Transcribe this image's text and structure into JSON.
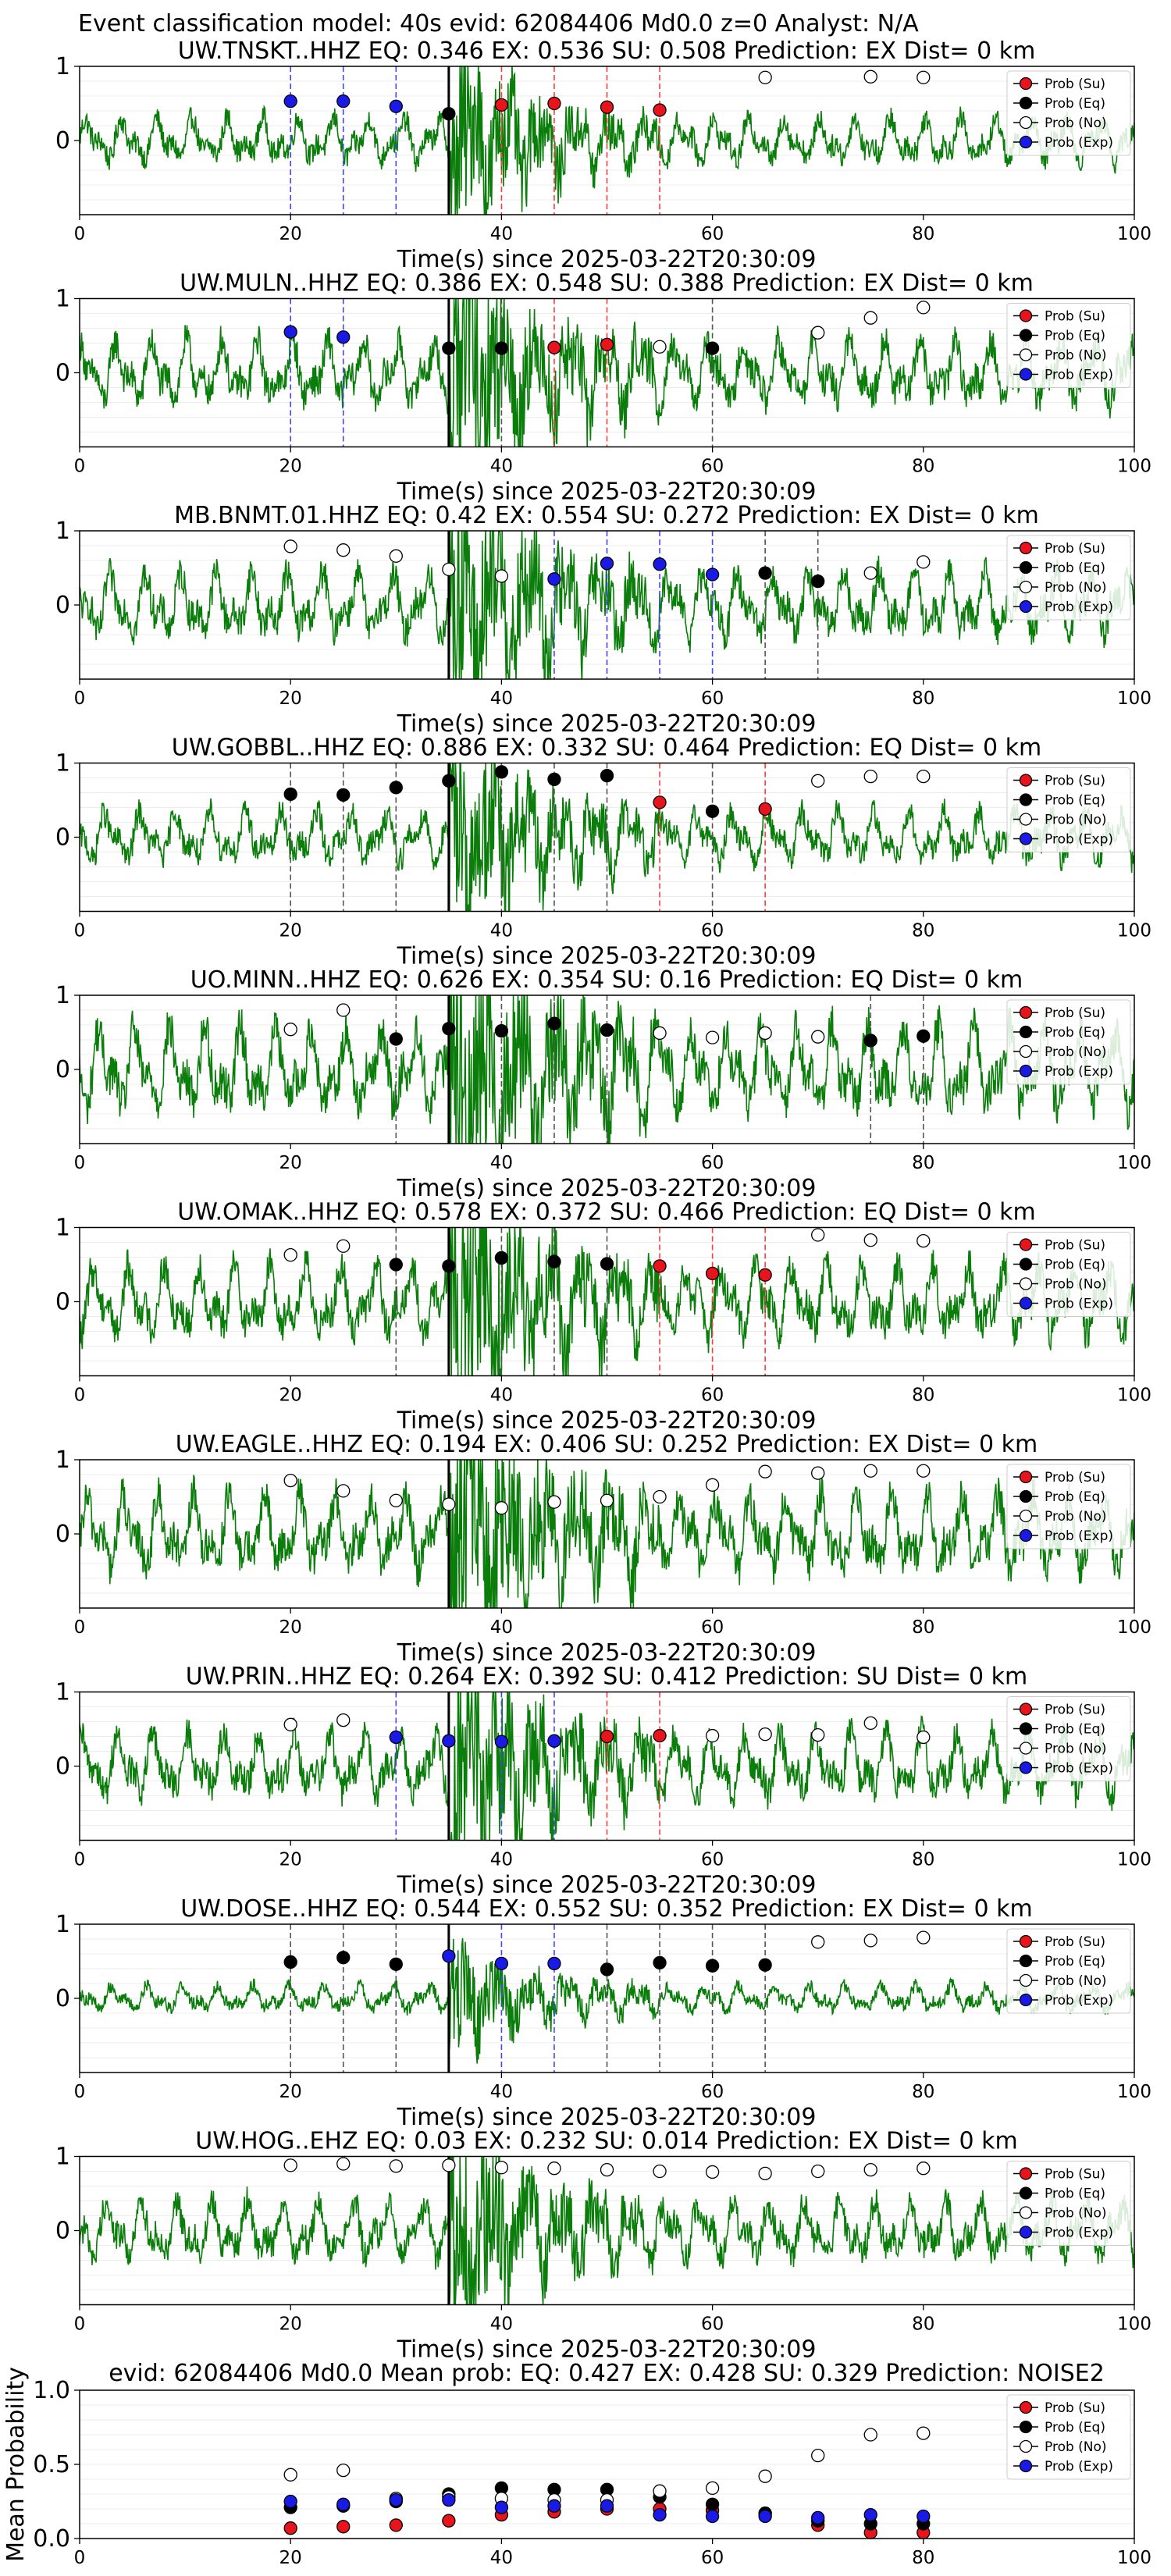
{
  "suptitle": "Event classification model: 40s evid: 62084406 Md0.0 z=0 Analyst: N/A",
  "legend_labels": [
    "Prob (Su)",
    "Prob (Eq)",
    "Prob (No)",
    "Prob (Exp)"
  ],
  "colors": {
    "su": "#e8141b",
    "eq": "#000000",
    "no": "#ffffff",
    "exp": "#1a1ae6",
    "trace": "#0a7d0a",
    "su_line": "#ff3b3b",
    "eq_line": "#555555",
    "exp_line": "#4444ff"
  },
  "chart_data": [
    {
      "type": "line",
      "title": "UW.TNSKT..HHZ   EQ: 0.346   EX: 0.536   SU: 0.508   Prediction: EX    Dist= 0 km",
      "xlabel": "Time(s) since 2025-03-22T20:30:09",
      "xlim": [
        0,
        100
      ],
      "ylim": [
        -1,
        1
      ],
      "xticks": [
        "0",
        "20",
        "40",
        "60",
        "80",
        "100"
      ],
      "yticks": [
        "1",
        "0"
      ],
      "pick": 35,
      "amp": 0.35,
      "grid": true,
      "legend": "top-right",
      "markers": [
        [
          20,
          0.53,
          "exp"
        ],
        [
          25,
          0.53,
          "exp"
        ],
        [
          30,
          0.46,
          "exp"
        ],
        [
          35,
          0.36,
          "eq"
        ],
        [
          40,
          0.48,
          "su"
        ],
        [
          45,
          0.5,
          "su"
        ],
        [
          50,
          0.45,
          "su"
        ],
        [
          55,
          0.41,
          "su"
        ],
        [
          65,
          0.85,
          "no"
        ],
        [
          75,
          0.86,
          "no"
        ],
        [
          80,
          0.85,
          "no"
        ]
      ]
    },
    {
      "type": "line",
      "title": "UW.MULN..HHZ   EQ: 0.386   EX: 0.548   SU: 0.388   Prediction: EX    Dist= 0 km",
      "xlabel": "Time(s) since 2025-03-22T20:30:09",
      "xlim": [
        0,
        100
      ],
      "ylim": [
        -1,
        1
      ],
      "xticks": [
        "0",
        "20",
        "40",
        "60",
        "80",
        "100"
      ],
      "yticks": [
        "1",
        "0"
      ],
      "pick": 35,
      "amp": 0.5,
      "grid": true,
      "legend": "top-right",
      "markers": [
        [
          20,
          0.55,
          "exp"
        ],
        [
          25,
          0.48,
          "exp"
        ],
        [
          35,
          0.33,
          "eq"
        ],
        [
          40,
          0.33,
          "eq"
        ],
        [
          45,
          0.34,
          "su"
        ],
        [
          50,
          0.38,
          "su"
        ],
        [
          55,
          0.35,
          "no"
        ],
        [
          60,
          0.33,
          "eq"
        ],
        [
          70,
          0.54,
          "no"
        ],
        [
          75,
          0.74,
          "no"
        ],
        [
          80,
          0.88,
          "no"
        ]
      ]
    },
    {
      "type": "line",
      "title": "MB.BNMT.01.HHZ   EQ: 0.42   EX: 0.554   SU: 0.272   Prediction: EX    Dist= 0 km",
      "xlabel": "Time(s) since 2025-03-22T20:30:09",
      "xlim": [
        0,
        100
      ],
      "ylim": [
        -1,
        1
      ],
      "xticks": [
        "0",
        "20",
        "40",
        "60",
        "80",
        "100"
      ],
      "yticks": [
        "1",
        "0"
      ],
      "pick": 35,
      "amp": 0.5,
      "grid": true,
      "legend": "top-right",
      "markers": [
        [
          20,
          0.79,
          "no"
        ],
        [
          25,
          0.74,
          "no"
        ],
        [
          30,
          0.66,
          "no"
        ],
        [
          35,
          0.48,
          "no"
        ],
        [
          40,
          0.39,
          "no"
        ],
        [
          45,
          0.35,
          "exp"
        ],
        [
          50,
          0.56,
          "exp"
        ],
        [
          55,
          0.55,
          "exp"
        ],
        [
          60,
          0.41,
          "exp"
        ],
        [
          65,
          0.43,
          "eq"
        ],
        [
          70,
          0.32,
          "eq"
        ],
        [
          75,
          0.43,
          "no"
        ],
        [
          80,
          0.58,
          "no"
        ]
      ]
    },
    {
      "type": "line",
      "title": "UW.GOBBL..HHZ   EQ: 0.886   EX: 0.332   SU: 0.464   Prediction: EQ    Dist= 0 km",
      "xlabel": "Time(s) since 2025-03-22T20:30:09",
      "xlim": [
        0,
        100
      ],
      "ylim": [
        -1,
        1
      ],
      "xticks": [
        "0",
        "20",
        "40",
        "60",
        "80",
        "100"
      ],
      "yticks": [
        "1",
        "0"
      ],
      "pick": 35,
      "amp": 0.4,
      "grid": true,
      "legend": "top-right",
      "markers": [
        [
          20,
          0.58,
          "eq"
        ],
        [
          25,
          0.57,
          "eq"
        ],
        [
          30,
          0.67,
          "eq"
        ],
        [
          35,
          0.76,
          "eq"
        ],
        [
          40,
          0.88,
          "eq"
        ],
        [
          45,
          0.78,
          "eq"
        ],
        [
          50,
          0.83,
          "eq"
        ],
        [
          55,
          0.47,
          "su"
        ],
        [
          60,
          0.35,
          "eq"
        ],
        [
          65,
          0.38,
          "su"
        ],
        [
          70,
          0.76,
          "no"
        ],
        [
          75,
          0.82,
          "no"
        ],
        [
          80,
          0.82,
          "no"
        ]
      ]
    },
    {
      "type": "line",
      "title": "UO.MINN..HHZ   EQ: 0.626   EX: 0.354   SU: 0.16   Prediction: EQ    Dist= 0 km",
      "xlabel": "Time(s) since 2025-03-22T20:30:09",
      "xlim": [
        0,
        100
      ],
      "ylim": [
        -1,
        1
      ],
      "xticks": [
        "0",
        "20",
        "40",
        "60",
        "80",
        "100"
      ],
      "yticks": [
        "1",
        "0"
      ],
      "pick": 35,
      "amp": 0.65,
      "grid": true,
      "legend": "top-right",
      "markers": [
        [
          20,
          0.54,
          "no"
        ],
        [
          25,
          0.8,
          "no"
        ],
        [
          30,
          0.41,
          "eq"
        ],
        [
          35,
          0.55,
          "eq"
        ],
        [
          40,
          0.52,
          "eq"
        ],
        [
          45,
          0.62,
          "eq"
        ],
        [
          50,
          0.53,
          "eq"
        ],
        [
          55,
          0.49,
          "no"
        ],
        [
          60,
          0.43,
          "no"
        ],
        [
          65,
          0.49,
          "no"
        ],
        [
          70,
          0.44,
          "no"
        ],
        [
          75,
          0.39,
          "eq"
        ],
        [
          80,
          0.45,
          "eq"
        ]
      ]
    },
    {
      "type": "line",
      "title": "UW.OMAK..HHZ   EQ: 0.578   EX: 0.372   SU: 0.466   Prediction: EQ    Dist= 0 km",
      "xlabel": "Time(s) since 2025-03-22T20:30:09",
      "xlim": [
        0,
        100
      ],
      "ylim": [
        -1,
        1
      ],
      "xticks": [
        "0",
        "20",
        "40",
        "60",
        "80",
        "100"
      ],
      "yticks": [
        "1",
        "0"
      ],
      "pick": 35,
      "amp": 0.55,
      "grid": true,
      "legend": "top-right",
      "markers": [
        [
          20,
          0.63,
          "no"
        ],
        [
          25,
          0.75,
          "no"
        ],
        [
          30,
          0.5,
          "eq"
        ],
        [
          35,
          0.48,
          "eq"
        ],
        [
          40,
          0.59,
          "eq"
        ],
        [
          45,
          0.54,
          "eq"
        ],
        [
          50,
          0.51,
          "eq"
        ],
        [
          55,
          0.48,
          "su"
        ],
        [
          60,
          0.38,
          "su"
        ],
        [
          65,
          0.36,
          "su"
        ],
        [
          70,
          0.9,
          "no"
        ],
        [
          75,
          0.83,
          "no"
        ],
        [
          80,
          0.82,
          "no"
        ]
      ]
    },
    {
      "type": "line",
      "title": "UW.EAGLE..HHZ   EQ: 0.194   EX: 0.406   SU: 0.252   Prediction: EX    Dist= 0 km",
      "xlabel": "Time(s) since 2025-03-22T20:30:09",
      "xlim": [
        0,
        100
      ],
      "ylim": [
        -1,
        1
      ],
      "xticks": [
        "0",
        "20",
        "40",
        "60",
        "80",
        "100"
      ],
      "yticks": [
        "1",
        "0"
      ],
      "pick": 35,
      "amp": 0.6,
      "grid": true,
      "legend": "top-right",
      "markers": [
        [
          20,
          0.72,
          "no"
        ],
        [
          25,
          0.58,
          "no"
        ],
        [
          30,
          0.45,
          "no"
        ],
        [
          35,
          0.4,
          "no"
        ],
        [
          40,
          0.35,
          "no"
        ],
        [
          45,
          0.43,
          "no"
        ],
        [
          50,
          0.45,
          "no"
        ],
        [
          55,
          0.5,
          "no"
        ],
        [
          60,
          0.66,
          "no"
        ],
        [
          65,
          0.84,
          "no"
        ],
        [
          70,
          0.82,
          "no"
        ],
        [
          75,
          0.85,
          "no"
        ],
        [
          80,
          0.85,
          "no"
        ]
      ]
    },
    {
      "type": "line",
      "title": "UW.PRIN..HHZ   EQ: 0.264   EX: 0.392   SU: 0.412   Prediction: SU    Dist= 0 km",
      "xlabel": "Time(s) since 2025-03-22T20:30:09",
      "xlim": [
        0,
        100
      ],
      "ylim": [
        -1,
        1
      ],
      "xticks": [
        "0",
        "20",
        "40",
        "60",
        "80",
        "100"
      ],
      "yticks": [
        "1",
        "0"
      ],
      "pick": 35,
      "amp": 0.5,
      "grid": true,
      "legend": "top-right",
      "markers": [
        [
          20,
          0.56,
          "no"
        ],
        [
          25,
          0.62,
          "no"
        ],
        [
          30,
          0.39,
          "exp"
        ],
        [
          35,
          0.34,
          "exp"
        ],
        [
          40,
          0.33,
          "exp"
        ],
        [
          45,
          0.34,
          "exp"
        ],
        [
          50,
          0.4,
          "su"
        ],
        [
          55,
          0.41,
          "su"
        ],
        [
          60,
          0.41,
          "no"
        ],
        [
          65,
          0.43,
          "no"
        ],
        [
          70,
          0.42,
          "no"
        ],
        [
          75,
          0.58,
          "no"
        ],
        [
          80,
          0.39,
          "no"
        ]
      ]
    },
    {
      "type": "line",
      "title": "UW.DOSE..HHZ   EQ: 0.544   EX: 0.552   SU: 0.352   Prediction: EX    Dist= 0 km",
      "xlabel": "Time(s) since 2025-03-22T20:30:09",
      "xlim": [
        0,
        100
      ],
      "ylim": [
        -1,
        1
      ],
      "xticks": [
        "0",
        "20",
        "40",
        "60",
        "80",
        "100"
      ],
      "yticks": [
        "1",
        "0"
      ],
      "pick": 35,
      "amp": 0.2,
      "grid": true,
      "legend": "top-right",
      "markers": [
        [
          20,
          0.49,
          "eq"
        ],
        [
          25,
          0.55,
          "eq"
        ],
        [
          30,
          0.46,
          "eq"
        ],
        [
          35,
          0.57,
          "exp"
        ],
        [
          40,
          0.47,
          "exp"
        ],
        [
          45,
          0.47,
          "exp"
        ],
        [
          50,
          0.39,
          "eq"
        ],
        [
          55,
          0.48,
          "eq"
        ],
        [
          60,
          0.44,
          "eq"
        ],
        [
          65,
          0.45,
          "eq"
        ],
        [
          70,
          0.76,
          "no"
        ],
        [
          75,
          0.78,
          "no"
        ],
        [
          80,
          0.82,
          "no"
        ]
      ]
    },
    {
      "type": "line",
      "title": "UW.HOG..EHZ   EQ: 0.03   EX: 0.232   SU: 0.014   Prediction: EX    Dist= 0 km",
      "xlabel": "Time(s) since 2025-03-22T20:30:09",
      "xlim": [
        0,
        100
      ],
      "ylim": [
        -1,
        1
      ],
      "xticks": [
        "0",
        "20",
        "40",
        "60",
        "80",
        "100"
      ],
      "yticks": [
        "1",
        "0"
      ],
      "pick": 35,
      "amp": 0.45,
      "grid": true,
      "legend": "top-right",
      "markers": [
        [
          20,
          0.88,
          "no"
        ],
        [
          25,
          0.9,
          "no"
        ],
        [
          30,
          0.87,
          "no"
        ],
        [
          35,
          0.88,
          "no"
        ],
        [
          40,
          0.85,
          "no"
        ],
        [
          45,
          0.84,
          "no"
        ],
        [
          50,
          0.82,
          "no"
        ],
        [
          55,
          0.8,
          "no"
        ],
        [
          60,
          0.79,
          "no"
        ],
        [
          65,
          0.77,
          "no"
        ],
        [
          70,
          0.8,
          "no"
        ],
        [
          75,
          0.82,
          "no"
        ],
        [
          80,
          0.84,
          "no"
        ]
      ]
    },
    {
      "type": "scatter",
      "title": "evid: 62084406  Md0.0   Mean prob:    EQ: 0.427   EX: 0.428   SU: 0.329   Prediction: NOISE2",
      "ylabel": "Mean Probability",
      "xlim": [
        0,
        100
      ],
      "ylim": [
        0,
        1
      ],
      "xticks": [
        "0",
        "20",
        "40",
        "60",
        "80",
        "100"
      ],
      "yticks": [
        "1.0",
        "0.5",
        "0.0"
      ],
      "grid": true,
      "legend": "top-right",
      "x": [
        20,
        25,
        30,
        35,
        40,
        45,
        50,
        55,
        60,
        65,
        70,
        75,
        80
      ],
      "series": [
        {
          "key": "su",
          "values": [
            0.07,
            0.08,
            0.09,
            0.12,
            0.16,
            0.18,
            0.2,
            0.2,
            0.19,
            0.17,
            0.09,
            0.04,
            0.04
          ]
        },
        {
          "key": "eq",
          "values": [
            0.21,
            0.22,
            0.25,
            0.3,
            0.34,
            0.33,
            0.33,
            0.28,
            0.23,
            0.17,
            0.12,
            0.1,
            0.1
          ]
        },
        {
          "key": "no",
          "values": [
            0.43,
            0.46,
            0.27,
            0.28,
            0.27,
            0.26,
            0.26,
            0.32,
            0.34,
            0.42,
            0.56,
            0.7,
            0.71
          ]
        },
        {
          "key": "exp",
          "values": [
            0.25,
            0.23,
            0.26,
            0.26,
            0.21,
            0.22,
            0.22,
            0.16,
            0.15,
            0.15,
            0.14,
            0.16,
            0.15
          ]
        }
      ]
    }
  ]
}
